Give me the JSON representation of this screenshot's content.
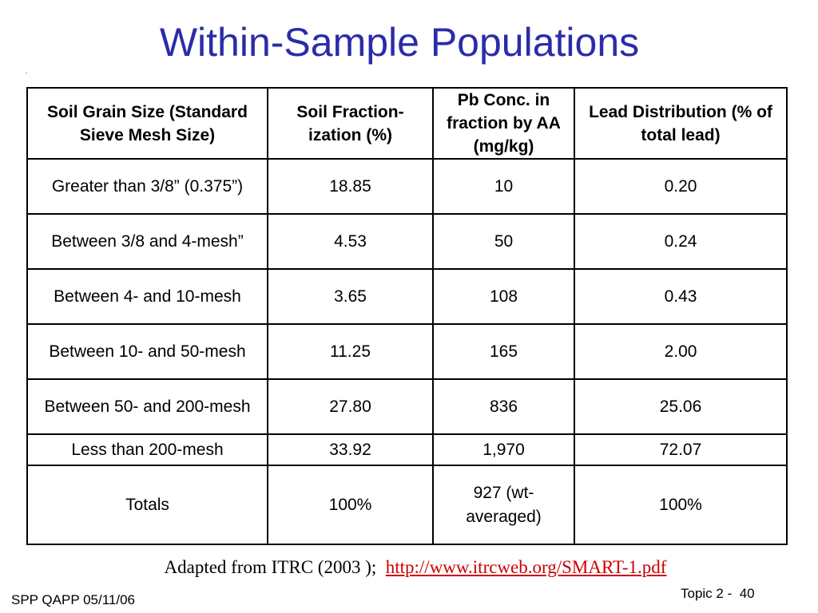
{
  "slide": {
    "title": "Within-Sample Populations",
    "source_prefix": "Adapted from ITRC (2003 );",
    "source_link": "http://www.itrcweb.org/SMART-1.pdf",
    "footer_left": "SPP QAPP 05/11/06",
    "footer_right": "Topic 2 -  40"
  },
  "table": {
    "headers": [
      "Soil Grain Size (Standard Sieve Mesh Size)",
      "Soil Fraction-ization (%)",
      "Pb Conc. in fraction by AA (mg/kg)",
      "Lead Distribution (% of total lead)"
    ],
    "rows": [
      [
        "Greater than 3/8” (0.375”)",
        "18.85",
        "10",
        "0.20"
      ],
      [
        "Between 3/8 and 4-mesh”",
        "4.53",
        "50",
        "0.24"
      ],
      [
        "Between 4- and 10-mesh",
        "3.65",
        "108",
        "0.43"
      ],
      [
        "Between 10- and 50-mesh",
        "11.25",
        "165",
        "2.00"
      ],
      [
        "Between 50- and 200-mesh",
        "27.80",
        "836",
        "25.06"
      ],
      [
        "Less than 200-mesh",
        "33.92",
        "1,970",
        "72.07"
      ],
      [
        "Totals",
        "100%",
        "927 (wt-averaged)",
        "100%"
      ]
    ]
  }
}
